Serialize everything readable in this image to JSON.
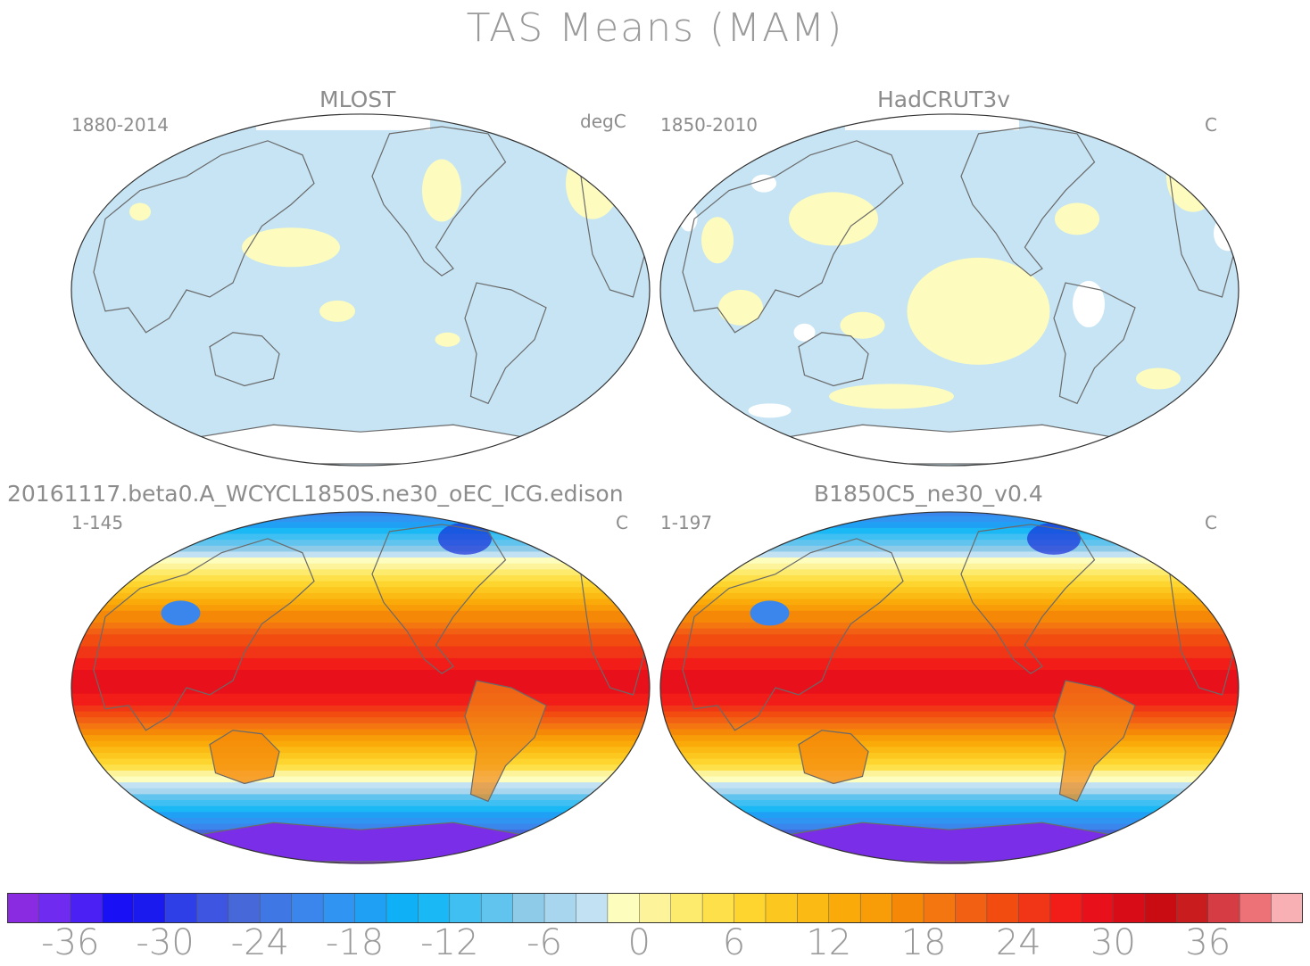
{
  "title": "TAS Means (MAM)",
  "panels": [
    {
      "id": "mlost",
      "name": "MLOST",
      "period": "1880-2014",
      "units": "degC",
      "style": "obs-sparse"
    },
    {
      "id": "hadcrut",
      "name": "HadCRUT3v",
      "period": "1850-2010",
      "units": "C",
      "style": "obs-dense"
    },
    {
      "id": "edison",
      "name": "20161117.beta0.A_WCYCL1850S.ne30_oEC_ICG.edison",
      "period": "1-145",
      "units": "C",
      "style": "model"
    },
    {
      "id": "b1850",
      "name": "B1850C5_ne30_v0.4",
      "period": "1-197",
      "units": "C",
      "style": "model"
    }
  ],
  "colorbar": {
    "colors": [
      "#8a2be2",
      "#6f2bf0",
      "#4b20f5",
      "#1a10f5",
      "#1a1aee",
      "#2f3fe8",
      "#3d55e0",
      "#4668d8",
      "#3f78e4",
      "#3a86ec",
      "#2f94f2",
      "#20a0f4",
      "#10b0f6",
      "#1ab8f4",
      "#40c0f2",
      "#60c4ee",
      "#8ecbe8",
      "#a8d6ee",
      "#c2e2f4",
      "#fdfdbe",
      "#fdf39a",
      "#fdeb6e",
      "#fde04a",
      "#fdd52e",
      "#fcc820",
      "#fbba14",
      "#faab0a",
      "#f89c08",
      "#f68808",
      "#f47610",
      "#f26014",
      "#f24c10",
      "#f03616",
      "#f21c18",
      "#e8101a",
      "#d80c16",
      "#c80c12",
      "#c81c1e",
      "#d63c44",
      "#ec7278",
      "#f8b0b4"
    ],
    "labels": [
      "-36",
      "-30",
      "-24",
      "-18",
      "-12",
      "-6",
      "0",
      "6",
      "12",
      "18",
      "24",
      "30",
      "36"
    ],
    "label_values": [
      -36,
      -30,
      -24,
      -18,
      -12,
      -6,
      0,
      6,
      12,
      18,
      24,
      30,
      36
    ],
    "min": -40,
    "max": 42
  }
}
